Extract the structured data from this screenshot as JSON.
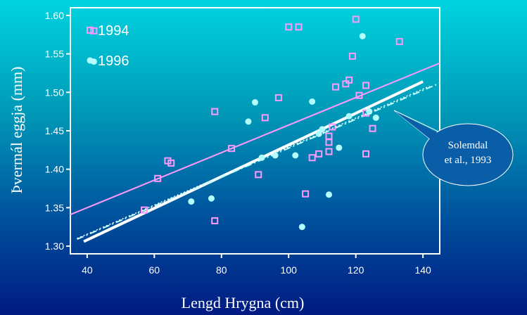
{
  "chart_data": {
    "type": "scatter",
    "xlabel": "Lengd Hrygna (cm)",
    "ylabel": "Þvermál eggja (mm)",
    "xlim": [
      35,
      145
    ],
    "ylim": [
      1.29,
      1.61
    ],
    "xticks": [
      "40",
      "60",
      "80",
      "100",
      "120",
      "140"
    ],
    "yticks": [
      "1.30",
      "1.35",
      "1.40",
      "1.45",
      "1.50",
      "1.55",
      "1.60"
    ],
    "grid": false,
    "legend_position": "top-left",
    "series": [
      {
        "name": "1994",
        "marker": "hollow-square",
        "color": "#ff99ff",
        "points": [
          [
            42,
            1.58
          ],
          [
            57,
            1.347
          ],
          [
            61,
            1.388
          ],
          [
            64,
            1.411
          ],
          [
            65,
            1.408
          ],
          [
            78,
            1.475
          ],
          [
            78,
            1.333
          ],
          [
            83,
            1.427
          ],
          [
            91,
            1.393
          ],
          [
            93,
            1.467
          ],
          [
            97,
            1.493
          ],
          [
            100,
            1.585
          ],
          [
            103,
            1.585
          ],
          [
            105,
            1.368
          ],
          [
            107,
            1.415
          ],
          [
            109,
            1.42
          ],
          [
            112,
            1.443
          ],
          [
            112,
            1.435
          ],
          [
            112,
            1.423
          ],
          [
            113,
            1.455
          ],
          [
            114,
            1.507
          ],
          [
            117,
            1.511
          ],
          [
            118,
            1.516
          ],
          [
            119,
            1.547
          ],
          [
            120,
            1.595
          ],
          [
            121,
            1.496
          ],
          [
            123,
            1.473
          ],
          [
            123,
            1.509
          ],
          [
            123,
            1.42
          ],
          [
            125,
            1.453
          ],
          [
            133,
            1.566
          ]
        ]
      },
      {
        "name": "1996",
        "marker": "filled-circle",
        "color": "#b3ffff",
        "points": [
          [
            42,
            1.54
          ],
          [
            71,
            1.358
          ],
          [
            77,
            1.362
          ],
          [
            88,
            1.462
          ],
          [
            90,
            1.487
          ],
          [
            92,
            1.415
          ],
          [
            96,
            1.418
          ],
          [
            102,
            1.418
          ],
          [
            104,
            1.325
          ],
          [
            107,
            1.488
          ],
          [
            109,
            1.446
          ],
          [
            110,
            1.452
          ],
          [
            112,
            1.367
          ],
          [
            115,
            1.428
          ],
          [
            118,
            1.469
          ],
          [
            122,
            1.573
          ],
          [
            124,
            1.475
          ],
          [
            126,
            1.467
          ]
        ]
      }
    ],
    "fit_lines": [
      {
        "series": "1994",
        "color": "#ff99ff",
        "style": "solid",
        "x": [
          35,
          145
        ],
        "y": [
          1.341,
          1.538
        ]
      },
      {
        "series": "1996",
        "color": "#ffffff",
        "style": "solid-thick",
        "x": [
          39,
          140
        ],
        "y": [
          1.306,
          1.514
        ]
      },
      {
        "color": "#b3ffff",
        "style": "dash-dot",
        "x": [
          37,
          145
        ],
        "y": [
          1.309,
          1.512
        ]
      },
      {
        "color": "#ffffff",
        "style": "dotted",
        "x": [
          37,
          142
        ],
        "y": [
          1.31,
          1.508
        ]
      }
    ],
    "annotation": {
      "line1": "Solemdal",
      "line2": "et al., 1993"
    }
  }
}
